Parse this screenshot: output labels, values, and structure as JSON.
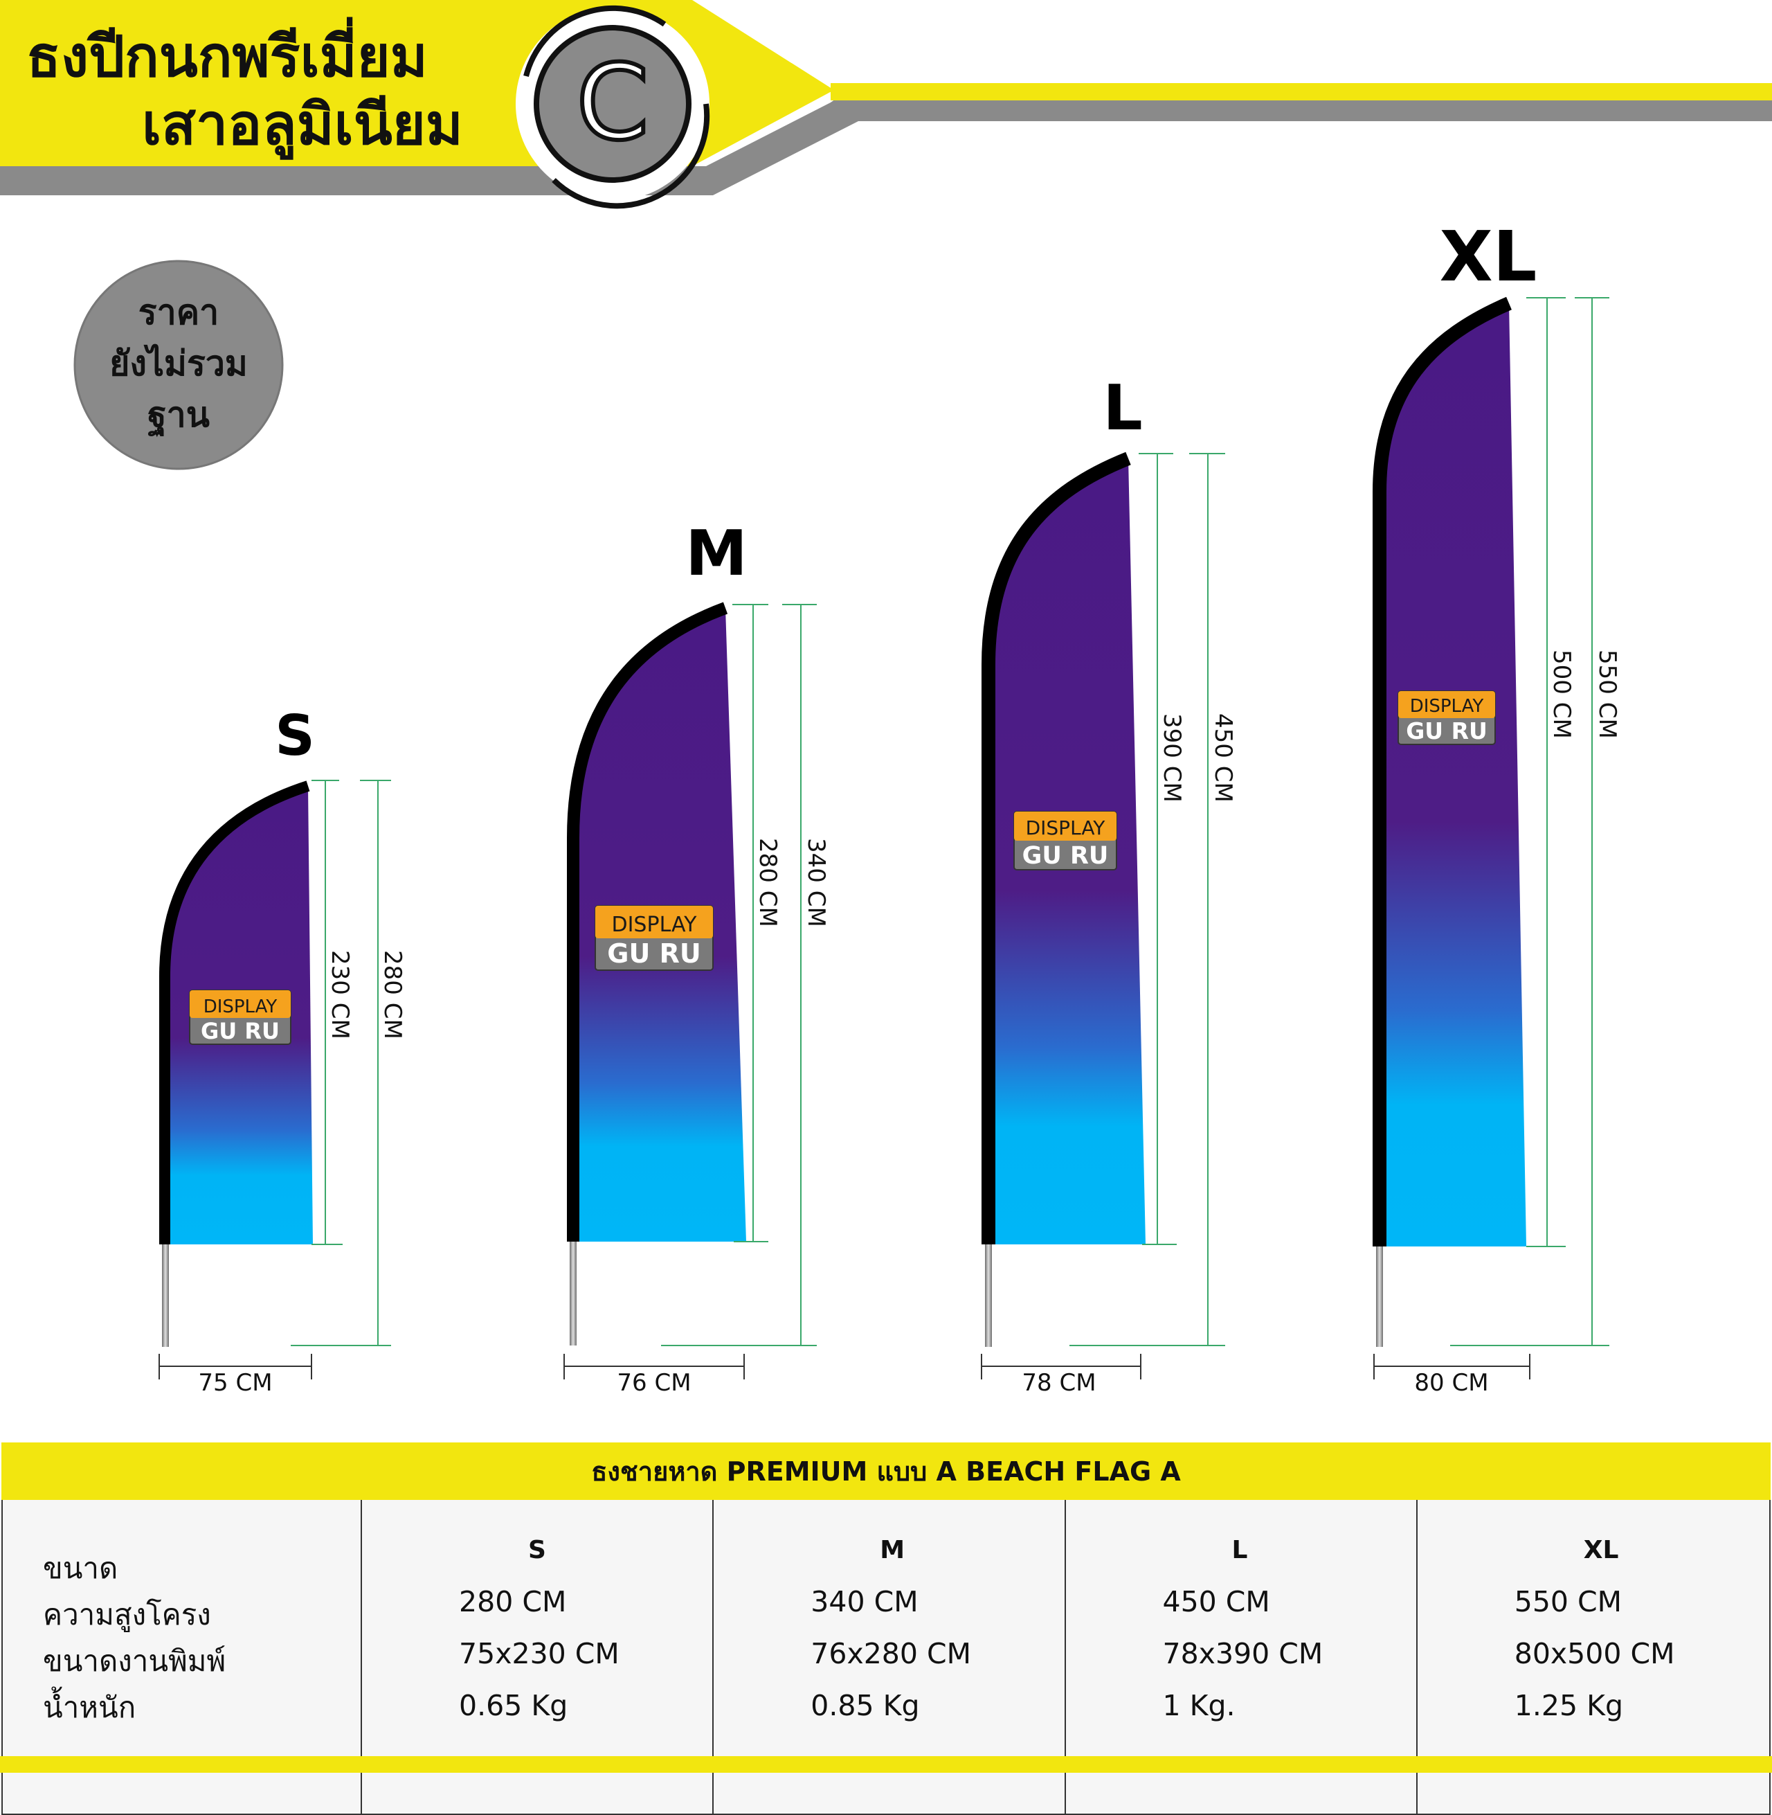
{
  "header": {
    "title_line1": "ธงปีกนกพรีเมี่ยม",
    "title_line2": "เสาอลูมิเนียม",
    "logo_letter": "C"
  },
  "badge": {
    "line1": "ราคา",
    "line2": "ยังไม่รวม",
    "line3": "ฐาน"
  },
  "flags": [
    {
      "size": "S",
      "inner_height": "230 CM",
      "outer_height": "280 CM",
      "width": "75 CM",
      "logo_top": "DISPLAY",
      "logo_bottom": "GU RU"
    },
    {
      "size": "M",
      "inner_height": "280 CM",
      "outer_height": "340 CM",
      "width": "76 CM",
      "logo_top": "DISPLAY",
      "logo_bottom": "GU RU"
    },
    {
      "size": "L",
      "inner_height": "390 CM",
      "outer_height": "450 CM",
      "width": "78 CM",
      "logo_top": "DISPLAY",
      "logo_bottom": "GU RU"
    },
    {
      "size": "XL",
      "inner_height": "500 CM",
      "outer_height": "550 CM",
      "width": "80 CM",
      "logo_top": "DISPLAY",
      "logo_bottom": "GU RU"
    }
  ],
  "table": {
    "title": "ธงชายหาด PREMIUM แบบ A  BEACH FLAG  A",
    "row_labels": [
      "ขนาด",
      "ความสูงโครง",
      "ขนาดงานพิมพ์",
      "น้ำหนัก"
    ],
    "columns": [
      {
        "size": "S",
        "frame_height": "280 CM",
        "print_size": "75x230 CM",
        "weight": "0.65 Kg"
      },
      {
        "size": "M",
        "frame_height": "340 CM",
        "print_size": "76x280 CM",
        "weight": "0.85 Kg"
      },
      {
        "size": "L",
        "frame_height": "450 CM",
        "print_size": "78x390 CM",
        "weight": "1 Kg."
      },
      {
        "size": "XL",
        "frame_height": "550 CM",
        "print_size": "80x500 CM",
        "weight": "1.25 Kg"
      }
    ]
  },
  "colors": {
    "accent_yellow": "#f2e60f",
    "band_gray": "#8a8a8a",
    "flag_purple": "#4a1a85",
    "flag_cyan": "#00b4f5",
    "logo_orange": "#f5a21e",
    "logo_gray": "#7a7a7a",
    "dim_line_green": "#3aa86a"
  }
}
